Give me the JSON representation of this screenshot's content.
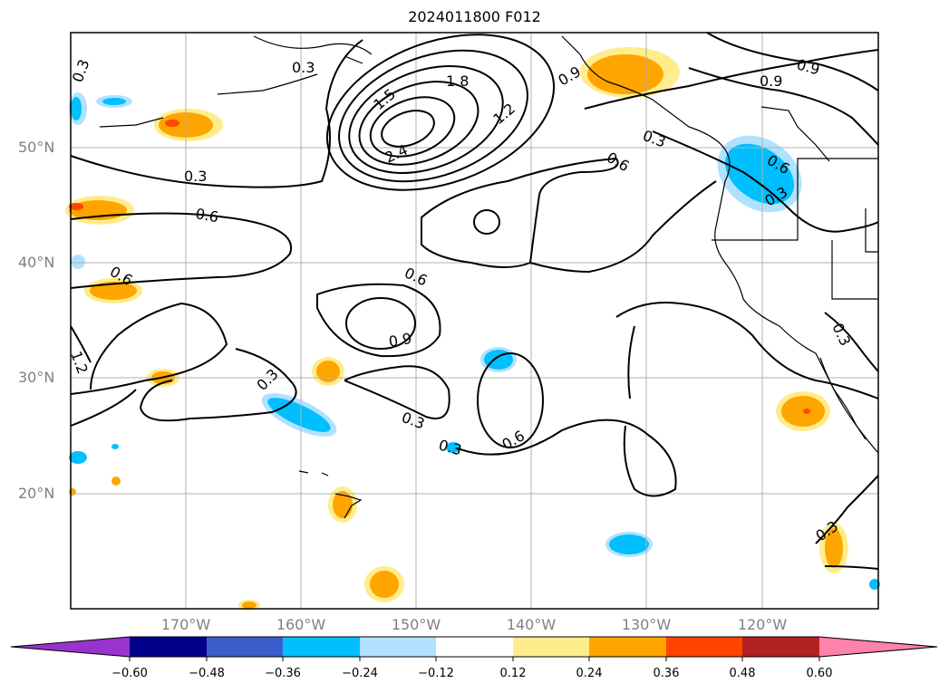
{
  "title": "2024011800 F012",
  "lat_labels": [
    "50°N",
    "40°N",
    "30°N",
    "20°N"
  ],
  "lon_labels": [
    "170°W",
    "160°W",
    "150°W",
    "140°W",
    "130°W",
    "120°W"
  ],
  "contour_labels": [
    "0.3",
    "0.3",
    "1.5",
    "1.8",
    "2.4",
    "1.2",
    "0.9",
    "0.3",
    "0.6",
    "0.9",
    "0.6",
    "0.3",
    "0.6",
    "0.6",
    "0.6",
    "0.3",
    "0.3",
    "0.9",
    "1.2",
    "0.9",
    "0.3",
    "0.3",
    "0.6",
    "0.3",
    "0.3"
  ],
  "colorbar": {
    "ticks": [
      "−0.60",
      "−0.48",
      "−0.36",
      "−0.24",
      "−0.12",
      "0.12",
      "0.24",
      "0.36",
      "0.48",
      "0.60"
    ],
    "colors": [
      "#9a32cd",
      "#00008b",
      "#3a5fcd",
      "#00bfff",
      "#b0e2ff",
      "#ffffff",
      "#ffec8b",
      "#ffa500",
      "#ff4500",
      "#b22222",
      "#ff82ab"
    ]
  },
  "colors": {
    "land_outline": "#000000",
    "grid": "#b0b0b0",
    "contour": "#000000"
  }
}
